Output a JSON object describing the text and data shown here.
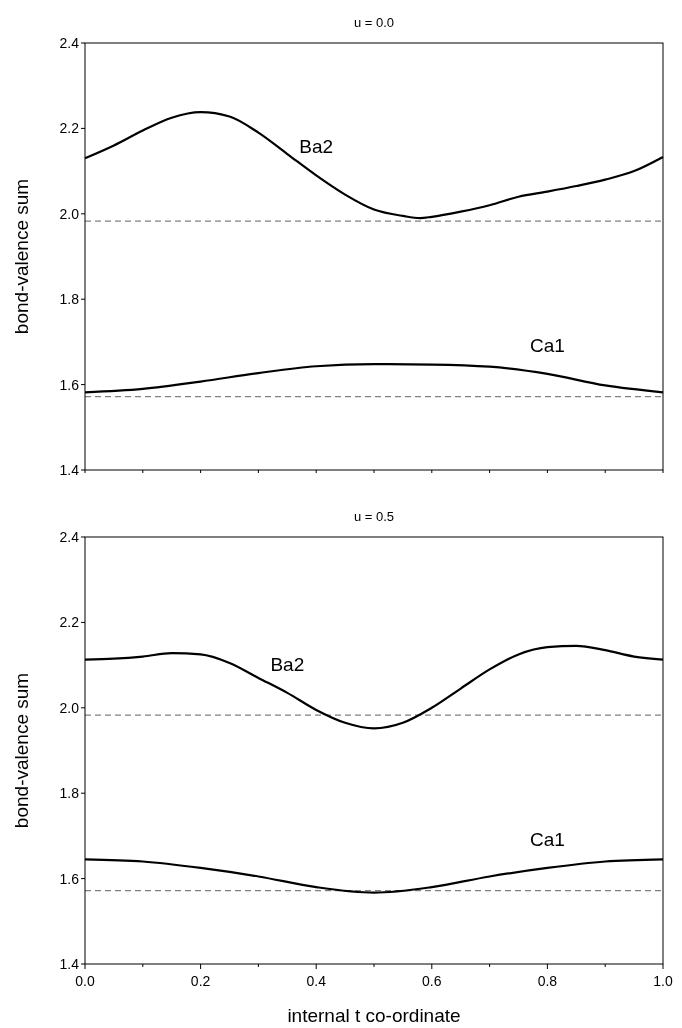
{
  "chart_data": [
    {
      "type": "line",
      "title": "u = 0.0",
      "ylabel": "bond-valence sum",
      "xlim": [
        0,
        1
      ],
      "ylim": [
        1.4,
        2.4
      ],
      "tick_labels": "y",
      "xticks": [
        {
          "value": 0,
          "label": null
        },
        {
          "value": 0.1,
          "label": null
        },
        {
          "value": 0.2,
          "label": null
        },
        {
          "value": 0.3,
          "label": null
        },
        {
          "value": 0.4,
          "label": null
        },
        {
          "value": 0.5,
          "label": null
        },
        {
          "value": 0.6,
          "label": null
        },
        {
          "value": 0.7,
          "label": null
        },
        {
          "value": 0.8,
          "label": null
        },
        {
          "value": 0.9,
          "label": null
        },
        {
          "value": 1,
          "label": null
        }
      ],
      "yticks": [
        {
          "value": 1.4,
          "label": "1.4"
        },
        {
          "value": 1.6,
          "label": "1.6"
        },
        {
          "value": 1.8,
          "label": "1.8"
        },
        {
          "value": 2.0,
          "label": "2.0"
        },
        {
          "value": 2.2,
          "label": "2.2"
        },
        {
          "value": 2.4,
          "label": "2.4"
        }
      ],
      "series": [
        {
          "name": "Ba2",
          "color": "#000000",
          "x": [
            0,
            0.05,
            0.1,
            0.15,
            0.2,
            0.25,
            0.3,
            0.35,
            0.4,
            0.45,
            0.5,
            0.55,
            0.58,
            0.6,
            0.65,
            0.7,
            0.75,
            0.8,
            0.85,
            0.9,
            0.95,
            1
          ],
          "values": [
            2.13,
            2.16,
            2.195,
            2.225,
            2.238,
            2.228,
            2.19,
            2.14,
            2.09,
            2.045,
            2.01,
            1.995,
            1.99,
            1.993,
            2.005,
            2.02,
            2.04,
            2.052,
            2.065,
            2.08,
            2.1,
            2.133
          ]
        },
        {
          "name": "Ca1",
          "color": "#000000",
          "x": [
            0,
            0.1,
            0.2,
            0.3,
            0.4,
            0.5,
            0.6,
            0.7,
            0.8,
            0.9,
            1
          ],
          "values": [
            1.582,
            1.59,
            1.607,
            1.627,
            1.643,
            1.648,
            1.647,
            1.642,
            1.625,
            1.598,
            1.582
          ]
        }
      ],
      "ref_lines": [
        {
          "axis": "y",
          "value": 1.983,
          "color": "#808080",
          "line_style": "dashed"
        },
        {
          "axis": "y",
          "value": 1.572,
          "color": "#808080",
          "line_style": "dashed"
        }
      ]
    },
    {
      "type": "line",
      "title": "u = 0.5",
      "ylabel": "bond-valence sum",
      "xlabel": "internal t co-ordinate",
      "xlim": [
        0,
        1
      ],
      "ylim": [
        1.4,
        2.4
      ],
      "xticks": [
        {
          "value": 0,
          "label": "0.0"
        },
        {
          "value": 0.1,
          "label": null
        },
        {
          "value": 0.2,
          "label": "0.2"
        },
        {
          "value": 0.3,
          "label": null
        },
        {
          "value": 0.4,
          "label": "0.4"
        },
        {
          "value": 0.5,
          "label": null
        },
        {
          "value": 0.6,
          "label": "0.6"
        },
        {
          "value": 0.7,
          "label": null
        },
        {
          "value": 0.8,
          "label": "0.8"
        },
        {
          "value": 0.9,
          "label": null
        },
        {
          "value": 1,
          "label": "1.0"
        }
      ],
      "yticks": [
        {
          "value": 1.4,
          "label": "1.4"
        },
        {
          "value": 1.6,
          "label": "1.6"
        },
        {
          "value": 1.8,
          "label": "1.8"
        },
        {
          "value": 2.0,
          "label": "2.0"
        },
        {
          "value": 2.2,
          "label": "2.2"
        },
        {
          "value": 2.4,
          "label": "2.4"
        }
      ],
      "series": [
        {
          "name": "Ba2",
          "color": "#000000",
          "x": [
            0,
            0.05,
            0.1,
            0.15,
            0.2,
            0.25,
            0.3,
            0.35,
            0.4,
            0.45,
            0.5,
            0.55,
            0.6,
            0.65,
            0.7,
            0.75,
            0.8,
            0.85,
            0.9,
            0.95,
            1
          ],
          "values": [
            2.113,
            2.115,
            2.12,
            2.128,
            2.125,
            2.105,
            2.07,
            2.035,
            1.995,
            1.965,
            1.952,
            1.965,
            2.0,
            2.045,
            2.09,
            2.125,
            2.142,
            2.145,
            2.135,
            2.12,
            2.113
          ]
        },
        {
          "name": "Ca1",
          "color": "#000000",
          "x": [
            0,
            0.1,
            0.2,
            0.3,
            0.4,
            0.5,
            0.6,
            0.7,
            0.8,
            0.9,
            1
          ],
          "values": [
            1.645,
            1.64,
            1.625,
            1.605,
            1.58,
            1.567,
            1.58,
            1.605,
            1.625,
            1.64,
            1.645
          ]
        }
      ],
      "ref_lines": [
        {
          "axis": "y",
          "value": 1.983,
          "color": "#808080",
          "line_style": "dashed"
        },
        {
          "axis": "y",
          "value": 1.572,
          "color": "#808080",
          "line_style": "dashed"
        }
      ]
    }
  ]
}
